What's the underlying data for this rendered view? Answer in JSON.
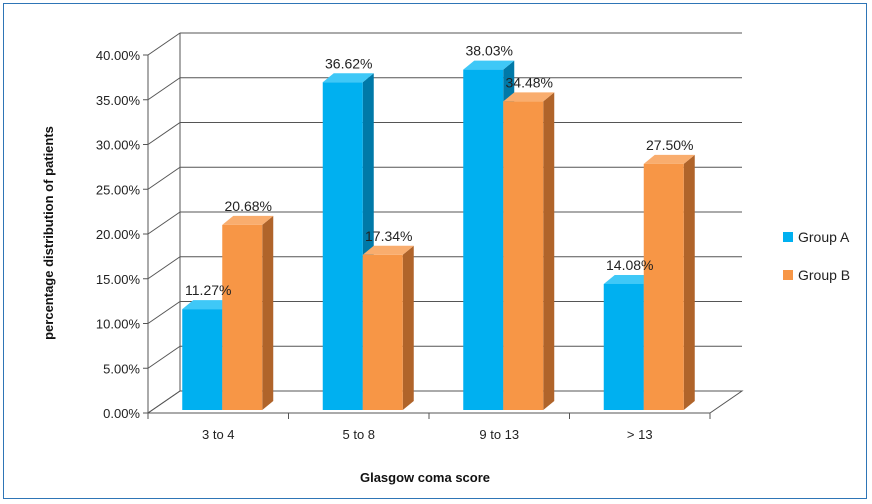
{
  "chart_data": {
    "type": "bar",
    "style": "3d-clustered-column",
    "categories": [
      "3 to 4",
      "5 to 8",
      "9 to 13",
      "> 13"
    ],
    "series": [
      {
        "name": "Group A",
        "values": [
          11.27,
          36.62,
          38.03,
          14.08
        ],
        "labels": [
          "11.27%",
          "36.62%",
          "38.03%",
          "14.08%"
        ],
        "color": "#00b0f0",
        "side_color": "#0079a8",
        "top_color": "#3fc8f7"
      },
      {
        "name": "Group B",
        "values": [
          20.68,
          17.34,
          34.48,
          27.5
        ],
        "labels": [
          "20.68%",
          "17.34%",
          "34.48%",
          "27.50%"
        ],
        "color": "#f79646",
        "side_color": "#b0642a",
        "top_color": "#f9ad6e"
      }
    ],
    "yticks": [
      "0.00%",
      "5.00%",
      "10.00%",
      "15.00%",
      "20.00%",
      "25.00%",
      "30.00%",
      "35.00%",
      "40.00%"
    ],
    "ylim": [
      0,
      40
    ],
    "xlabel": "Glasgow coma score",
    "ylabel": "percentage distribution of patients",
    "legend_position": "right",
    "grid": true,
    "frame_color": "#2e75b6"
  }
}
